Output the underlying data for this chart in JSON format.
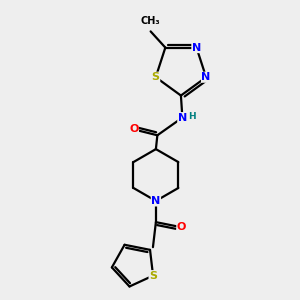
{
  "bg_color": "#eeeeee",
  "bond_color": "#000000",
  "atom_colors": {
    "N": "#0000ff",
    "O": "#ff0000",
    "S": "#aaaa00",
    "C": "#000000",
    "H": "#008080"
  },
  "figsize": [
    3.0,
    3.0
  ],
  "dpi": 100,
  "lw": 1.6,
  "fs": 8.0
}
